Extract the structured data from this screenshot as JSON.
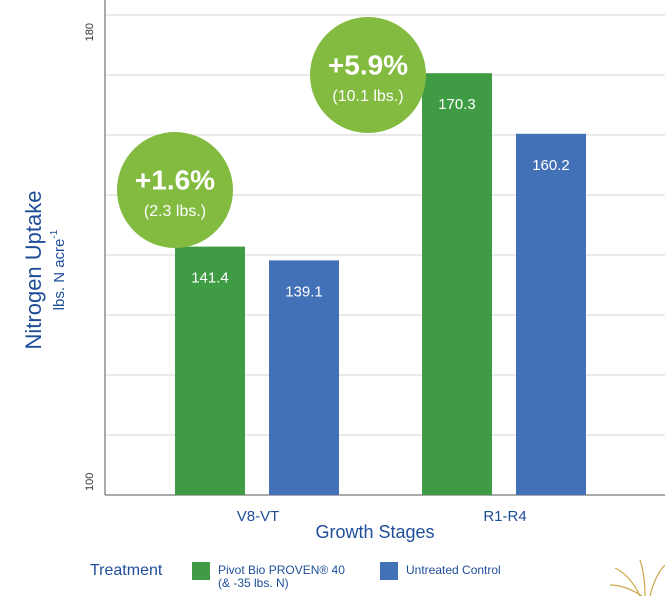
{
  "chart_data": {
    "type": "bar",
    "y_label": "Nitrogen Uptake",
    "y_label_unit": "lbs. N acre",
    "y_label_unit_sup": "-1",
    "x_label": "Growth Stages",
    "categories": [
      "V8-VT",
      "R1-R4"
    ],
    "series": [
      {
        "name": "Pivot Bio PROVEN® 40 (& -35 lbs. N)",
        "color": "#3f9c45",
        "values": [
          141.4,
          170.3
        ]
      },
      {
        "name": "Untreated Control",
        "color": "#4271b8",
        "values": [
          139.1,
          160.2
        ]
      }
    ],
    "ylim": [
      100,
      180
    ],
    "yticks": [
      100,
      180
    ],
    "minor_yticks": [
      110,
      120,
      130,
      140,
      150,
      160,
      170
    ],
    "grid": true,
    "legend_title": "Treatment",
    "annotations": [
      {
        "text": "+1.6%",
        "note": "(2.3 lbs.)"
      },
      {
        "text": "+5.9%",
        "note": "(10.1 lbs.)"
      }
    ]
  }
}
